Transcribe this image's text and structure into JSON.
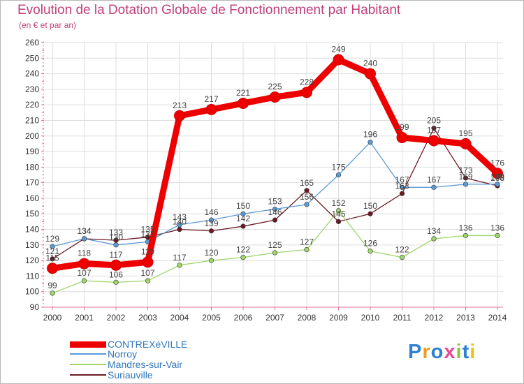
{
  "title": "Evolution de la Dotation Globale de Fonctionnement par Habitant",
  "subtitle": "(en € et par an)",
  "logo_text": "Proxiti",
  "chart_data": {
    "type": "line",
    "title": "Evolution de la Dotation Globale de Fonctionnement par Habitant",
    "subtitle": "(en € et par an)",
    "xlabel": "",
    "ylabel": "",
    "ylim": [
      90,
      260
    ],
    "yticks": [
      90,
      100,
      110,
      120,
      130,
      140,
      150,
      160,
      170,
      180,
      190,
      200,
      210,
      220,
      230,
      240,
      250,
      260
    ],
    "categories": [
      "2000",
      "2001",
      "2002",
      "2003",
      "2004",
      "2005",
      "2006",
      "2007",
      "2008",
      "2009",
      "2010",
      "2011",
      "2012",
      "2013",
      "2014"
    ],
    "grid": true,
    "legend": "bottom-left",
    "series": [
      {
        "name": "Suriauville",
        "color": "#6b1a24",
        "values": [
          121,
          134,
          133,
          135,
          140,
          139,
          142,
          146,
          165,
          145,
          150,
          163,
          205,
          173,
          168
        ]
      },
      {
        "name": "Mandres-sur-Vair",
        "color": "#9ed66b",
        "values": [
          99,
          107,
          106,
          107,
          117,
          120,
          122,
          125,
          127,
          152,
          126,
          122,
          134,
          136,
          136
        ]
      },
      {
        "name": "Norroy",
        "color": "#5b9bd5",
        "values": [
          129,
          134,
          130,
          132,
          143,
          146,
          150,
          153,
          156,
          175,
          196,
          167,
          167,
          169,
          169
        ]
      },
      {
        "name": "CONTREXéVILLE",
        "color": "#ee0000",
        "values": [
          115,
          118,
          117,
          119,
          213,
          217,
          221,
          225,
          228,
          249,
          240,
          199,
          197,
          195,
          176
        ]
      }
    ]
  },
  "legend_items": [
    {
      "name": "CONTREXéVILLE",
      "color": "#ee0000"
    },
    {
      "name": "Norroy",
      "color": "#5b9bd5"
    },
    {
      "name": "Mandres-sur-Vair",
      "color": "#9ed66b"
    },
    {
      "name": "Suriauville",
      "color": "#6b1a24"
    }
  ]
}
